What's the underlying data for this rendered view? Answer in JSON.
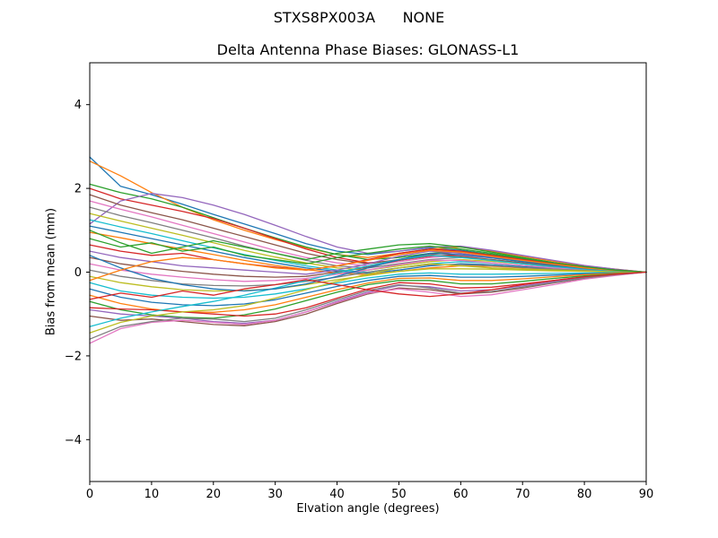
{
  "figure": {
    "suptitle": "STXS8PX003A      NONE",
    "axes_title": "Delta Antenna Phase Biases: GLONASS-L1",
    "xlabel": "Elvation angle (degrees)",
    "ylabel": "Bias from mean (mm)",
    "background": "#ffffff",
    "spine_color": "#000000"
  },
  "chart_data": {
    "type": "line",
    "title": "Delta Antenna Phase Biases: GLONASS-L1",
    "subtitle": "STXS8PX003A      NONE",
    "xlabel": "Elvation angle (degrees)",
    "ylabel": "Bias from mean (mm)",
    "xlim": [
      0,
      90
    ],
    "ylim": [
      -5,
      5
    ],
    "xticks": [
      0,
      10,
      20,
      30,
      40,
      50,
      60,
      70,
      80,
      90
    ],
    "yticks": [
      -4,
      -2,
      0,
      2,
      4
    ],
    "grid": false,
    "legend": false,
    "palette": [
      "#1f77b4",
      "#ff7f0e",
      "#2ca02c",
      "#d62728",
      "#9467bd",
      "#8c564b",
      "#e377c2",
      "#7f7f7f",
      "#bcbd22",
      "#17becf"
    ],
    "x": [
      0,
      5,
      10,
      15,
      20,
      25,
      30,
      35,
      40,
      45,
      50,
      55,
      60,
      65,
      70,
      75,
      80,
      85,
      90
    ],
    "series": [
      {
        "values": [
          2.75,
          2.05,
          1.85,
          1.62,
          1.38,
          1.15,
          0.92,
          0.68,
          0.5,
          0.42,
          0.5,
          0.58,
          0.52,
          0.42,
          0.3,
          0.2,
          0.12,
          0.05,
          0
        ]
      },
      {
        "values": [
          2.65,
          2.3,
          1.9,
          1.55,
          1.25,
          1.0,
          0.78,
          0.58,
          0.42,
          0.35,
          0.45,
          0.55,
          0.6,
          0.5,
          0.38,
          0.26,
          0.15,
          0.07,
          0
        ]
      },
      {
        "values": [
          2.1,
          1.9,
          1.75,
          1.55,
          1.3,
          1.05,
          0.82,
          0.6,
          0.42,
          0.3,
          0.35,
          0.45,
          0.5,
          0.42,
          0.32,
          0.22,
          0.13,
          0.06,
          0
        ]
      },
      {
        "values": [
          2.0,
          1.75,
          1.6,
          1.45,
          1.28,
          1.05,
          0.8,
          0.55,
          0.35,
          0.22,
          0.28,
          0.38,
          0.42,
          0.36,
          0.28,
          0.19,
          0.11,
          0.05,
          0
        ]
      },
      {
        "values": [
          1.15,
          1.7,
          1.88,
          1.78,
          1.6,
          1.38,
          1.12,
          0.85,
          0.6,
          0.45,
          0.5,
          0.6,
          0.62,
          0.52,
          0.4,
          0.28,
          0.16,
          0.07,
          0
        ]
      },
      {
        "values": [
          1.85,
          1.6,
          1.42,
          1.25,
          1.05,
          0.85,
          0.65,
          0.45,
          0.3,
          0.2,
          0.3,
          0.42,
          0.48,
          0.4,
          0.3,
          0.2,
          0.12,
          0.05,
          0
        ]
      },
      {
        "values": [
          1.7,
          1.5,
          1.32,
          1.12,
          0.92,
          0.72,
          0.52,
          0.35,
          0.22,
          0.15,
          0.25,
          0.35,
          0.4,
          0.34,
          0.26,
          0.18,
          0.1,
          0.04,
          0
        ]
      },
      {
        "values": [
          1.55,
          1.35,
          1.18,
          1.0,
          0.82,
          0.62,
          0.45,
          0.28,
          0.15,
          0.1,
          0.2,
          0.3,
          0.35,
          0.3,
          0.22,
          0.15,
          0.08,
          0.03,
          0
        ]
      },
      {
        "values": [
          1.4,
          1.22,
          1.05,
          0.88,
          0.7,
          0.52,
          0.36,
          0.22,
          0.1,
          0.05,
          0.15,
          0.25,
          0.3,
          0.26,
          0.2,
          0.13,
          0.07,
          0.03,
          0
        ]
      },
      {
        "values": [
          1.25,
          1.08,
          0.92,
          0.75,
          0.58,
          0.42,
          0.28,
          0.15,
          0.05,
          0.0,
          0.1,
          0.2,
          0.25,
          0.22,
          0.16,
          0.11,
          0.06,
          0.02,
          0
        ]
      },
      {
        "values": [
          1.1,
          0.95,
          0.8,
          0.65,
          0.5,
          0.35,
          0.22,
          0.1,
          0.02,
          -0.03,
          0.05,
          0.15,
          0.2,
          0.18,
          0.13,
          0.09,
          0.05,
          0.02,
          0
        ]
      },
      {
        "values": [
          0.95,
          0.82,
          0.68,
          0.55,
          0.42,
          0.28,
          0.16,
          0.06,
          -0.02,
          -0.06,
          0.02,
          0.1,
          0.15,
          0.14,
          0.1,
          0.07,
          0.04,
          0.02,
          0
        ]
      },
      {
        "values": [
          0.8,
          0.6,
          0.7,
          0.5,
          0.6,
          0.4,
          0.3,
          0.2,
          0.35,
          0.45,
          0.55,
          0.62,
          0.55,
          0.45,
          0.33,
          0.22,
          0.12,
          0.05,
          0
        ]
      },
      {
        "values": [
          0.65,
          0.5,
          0.4,
          0.45,
          0.3,
          0.2,
          0.12,
          0.05,
          0.15,
          0.3,
          0.45,
          0.55,
          0.5,
          0.4,
          0.3,
          0.2,
          0.11,
          0.05,
          0
        ]
      },
      {
        "values": [
          0.5,
          0.35,
          0.25,
          0.15,
          0.1,
          0.05,
          0.0,
          -0.05,
          0.05,
          0.2,
          0.38,
          0.5,
          0.45,
          0.36,
          0.27,
          0.18,
          0.1,
          0.04,
          0
        ]
      },
      {
        "values": [
          0.35,
          0.2,
          0.1,
          0.02,
          -0.05,
          -0.1,
          -0.12,
          -0.1,
          0.0,
          0.12,
          0.28,
          0.4,
          0.38,
          0.3,
          0.22,
          0.15,
          0.08,
          0.03,
          0
        ]
      },
      {
        "values": [
          0.2,
          0.05,
          -0.05,
          -0.12,
          -0.18,
          -0.22,
          -0.2,
          -0.15,
          -0.05,
          0.05,
          0.18,
          0.28,
          0.28,
          0.22,
          0.16,
          0.1,
          0.06,
          0.02,
          0
        ]
      },
      {
        "values": [
          0.05,
          -0.1,
          -0.2,
          -0.28,
          -0.32,
          -0.33,
          -0.3,
          -0.22,
          -0.12,
          0.0,
          0.1,
          0.18,
          0.18,
          0.15,
          0.11,
          0.07,
          0.04,
          0.01,
          0
        ]
      },
      {
        "values": [
          -0.1,
          -0.25,
          -0.35,
          -0.42,
          -0.45,
          -0.44,
          -0.4,
          -0.3,
          -0.18,
          -0.08,
          0.02,
          0.08,
          0.08,
          0.07,
          0.05,
          0.03,
          0.02,
          0.01,
          0
        ]
      },
      {
        "values": [
          -0.25,
          -0.45,
          -0.55,
          -0.6,
          -0.62,
          -0.6,
          -0.52,
          -0.4,
          -0.26,
          -0.14,
          -0.05,
          -0.02,
          -0.05,
          -0.05,
          -0.04,
          -0.03,
          -0.02,
          -0.01,
          0
        ]
      },
      {
        "values": [
          -0.4,
          -0.6,
          -0.72,
          -0.78,
          -0.8,
          -0.76,
          -0.66,
          -0.5,
          -0.34,
          -0.2,
          -0.1,
          -0.08,
          -0.12,
          -0.12,
          -0.1,
          -0.07,
          -0.04,
          -0.02,
          0
        ]
      },
      {
        "values": [
          -0.55,
          -0.75,
          -0.88,
          -0.95,
          -0.96,
          -0.9,
          -0.78,
          -0.6,
          -0.42,
          -0.26,
          -0.15,
          -0.14,
          -0.2,
          -0.2,
          -0.16,
          -0.11,
          -0.06,
          -0.03,
          0
        ]
      },
      {
        "values": [
          -0.7,
          -0.9,
          -1.02,
          -1.08,
          -1.1,
          -1.02,
          -0.88,
          -0.68,
          -0.48,
          -0.3,
          -0.2,
          -0.2,
          -0.28,
          -0.28,
          -0.22,
          -0.15,
          -0.09,
          -0.04,
          0
        ]
      },
      {
        "values": [
          -0.85,
          -0.88,
          -0.9,
          -0.95,
          -1.0,
          -1.05,
          -1.0,
          -0.85,
          -0.62,
          -0.4,
          -0.25,
          -0.28,
          -0.38,
          -0.36,
          -0.28,
          -0.2,
          -0.12,
          -0.05,
          0
        ]
      },
      {
        "values": [
          -0.9,
          -1.0,
          -1.05,
          -1.1,
          -1.18,
          -1.22,
          -1.15,
          -0.95,
          -0.7,
          -0.48,
          -0.32,
          -0.35,
          -0.45,
          -0.42,
          -0.33,
          -0.23,
          -0.13,
          -0.06,
          0
        ]
      },
      {
        "values": [
          -1.05,
          -1.15,
          -1.12,
          -1.18,
          -1.25,
          -1.28,
          -1.18,
          -1.0,
          -0.75,
          -0.52,
          -0.38,
          -0.42,
          -0.52,
          -0.48,
          -0.38,
          -0.26,
          -0.15,
          -0.07,
          0
        ]
      },
      {
        "values": [
          -1.7,
          -1.35,
          -1.2,
          -1.15,
          -1.2,
          -1.25,
          -1.15,
          -0.95,
          -0.72,
          -0.5,
          -0.4,
          -0.48,
          -0.58,
          -0.54,
          -0.42,
          -0.3,
          -0.17,
          -0.08,
          0
        ]
      },
      {
        "values": [
          -1.6,
          -1.3,
          -1.18,
          -1.1,
          -1.12,
          -1.18,
          -1.1,
          -0.9,
          -0.66,
          -0.44,
          -0.3,
          -0.38,
          -0.5,
          -0.46,
          -0.36,
          -0.25,
          -0.14,
          -0.06,
          0
        ]
      },
      {
        "values": [
          -1.45,
          -1.2,
          -1.05,
          -0.95,
          -0.9,
          -0.8,
          -0.62,
          -0.42,
          -0.22,
          -0.05,
          0.1,
          0.2,
          0.15,
          0.1,
          0.07,
          0.05,
          0.03,
          0.01,
          0
        ]
      },
      {
        "values": [
          -1.3,
          -1.1,
          -0.95,
          -0.82,
          -0.7,
          -0.55,
          -0.38,
          -0.2,
          -0.02,
          0.15,
          0.3,
          0.4,
          0.35,
          0.28,
          0.2,
          0.13,
          0.07,
          0.03,
          0
        ]
      },
      {
        "values": [
          0.4,
          0.1,
          -0.15,
          -0.3,
          -0.4,
          -0.45,
          -0.4,
          -0.28,
          -0.1,
          0.1,
          0.3,
          0.45,
          0.42,
          0.34,
          0.25,
          0.17,
          0.09,
          0.04,
          0
        ]
      },
      {
        "values": [
          -0.2,
          0.05,
          0.25,
          0.35,
          0.3,
          0.2,
          0.1,
          0.05,
          0.15,
          0.28,
          0.42,
          0.52,
          0.48,
          0.38,
          0.28,
          0.19,
          0.1,
          0.04,
          0
        ]
      },
      {
        "values": [
          1.0,
          0.7,
          0.45,
          0.6,
          0.75,
          0.6,
          0.45,
          0.3,
          0.45,
          0.55,
          0.65,
          0.68,
          0.6,
          0.48,
          0.35,
          0.23,
          0.13,
          0.05,
          0
        ]
      },
      {
        "values": [
          -0.65,
          -0.5,
          -0.6,
          -0.45,
          -0.55,
          -0.4,
          -0.3,
          -0.18,
          -0.3,
          -0.42,
          -0.52,
          -0.58,
          -0.52,
          -0.42,
          -0.3,
          -0.2,
          -0.11,
          -0.05,
          0
        ]
      }
    ]
  }
}
